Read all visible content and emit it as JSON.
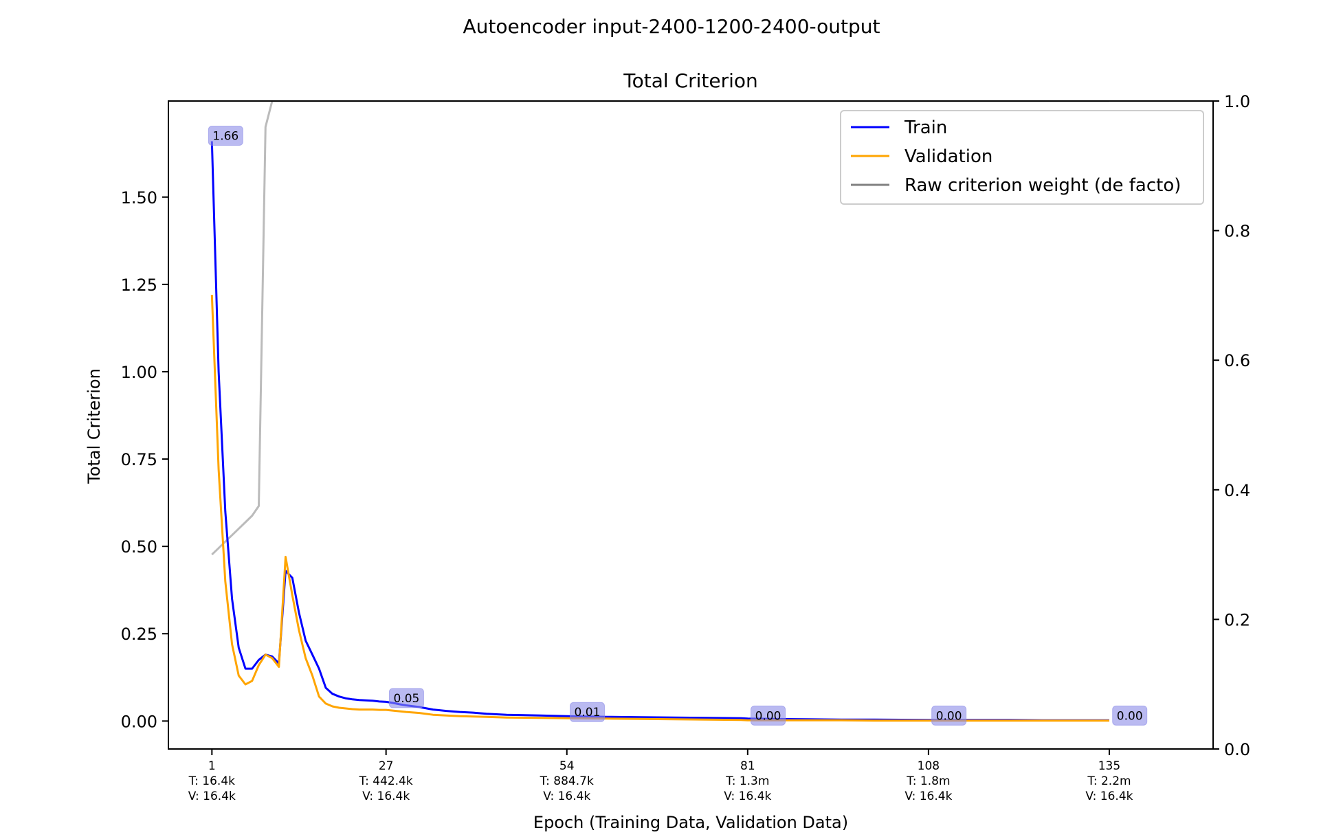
{
  "figure": {
    "suptitle": "Autoencoder input-2400-1200-2400-output"
  },
  "chart_data": {
    "type": "line",
    "title": "Total Criterion",
    "xlabel": "Epoch (Training Data, Validation Data)",
    "ylabel": "Total Criterion",
    "ylabel_right": "",
    "xlim": [
      -5.5,
      150.5
    ],
    "ylim": [
      -0.08,
      1.775
    ],
    "ylim_right": [
      0.0,
      1.0
    ],
    "grid": false,
    "legend_position": "top-right",
    "y_ticks": [
      "0.00",
      "0.25",
      "0.50",
      "0.75",
      "1.00",
      "1.25",
      "1.50"
    ],
    "y_tick_values": [
      0.0,
      0.25,
      0.5,
      0.75,
      1.0,
      1.25,
      1.5
    ],
    "y_right_ticks": [
      "0.0",
      "0.2",
      "0.4",
      "0.6",
      "0.8",
      "1.0"
    ],
    "y_right_tick_values": [
      0.0,
      0.2,
      0.4,
      0.6,
      0.8,
      1.0
    ],
    "x_ticks": [
      {
        "value": 1,
        "lines": [
          "1",
          "T: 16.4k",
          "V: 16.4k"
        ]
      },
      {
        "value": 27,
        "lines": [
          "27",
          "T: 442.4k",
          "V: 16.4k"
        ]
      },
      {
        "value": 54,
        "lines": [
          "54",
          "T: 884.7k",
          "V: 16.4k"
        ]
      },
      {
        "value": 81,
        "lines": [
          "81",
          "T: 1.3m",
          "V: 16.4k"
        ]
      },
      {
        "value": 108,
        "lines": [
          "108",
          "T: 1.8m",
          "V: 16.4k"
        ]
      },
      {
        "value": 135,
        "lines": [
          "135",
          "T: 2.2m",
          "V: 16.4k"
        ]
      }
    ],
    "series": [
      {
        "name": "Train",
        "color": "#0000ff",
        "axis": "left",
        "x": [
          1,
          2,
          3,
          4,
          5,
          6,
          7,
          8,
          9,
          10,
          11,
          12,
          13,
          14,
          15,
          16,
          17,
          18,
          19,
          20,
          21,
          22,
          23,
          24,
          25,
          26,
          27,
          28,
          29,
          30,
          32,
          34,
          36,
          38,
          40,
          42,
          45,
          50,
          54,
          60,
          65,
          70,
          75,
          80,
          81,
          85,
          90,
          95,
          100,
          108,
          115,
          120,
          125,
          130,
          135
        ],
        "y": [
          1.66,
          1.0,
          0.6,
          0.35,
          0.21,
          0.15,
          0.15,
          0.175,
          0.19,
          0.185,
          0.165,
          0.43,
          0.41,
          0.31,
          0.23,
          0.19,
          0.15,
          0.095,
          0.078,
          0.07,
          0.065,
          0.062,
          0.06,
          0.059,
          0.058,
          0.056,
          0.055,
          0.052,
          0.048,
          0.045,
          0.04,
          0.033,
          0.029,
          0.026,
          0.024,
          0.021,
          0.018,
          0.016,
          0.014,
          0.012,
          0.011,
          0.01,
          0.009,
          0.008,
          0.007,
          0.006,
          0.005,
          0.004,
          0.004,
          0.003,
          0.003,
          0.003,
          0.002,
          0.002,
          0.002
        ]
      },
      {
        "name": "Validation",
        "color": "#ffa500",
        "axis": "left",
        "x": [
          1,
          2,
          3,
          4,
          5,
          6,
          7,
          8,
          9,
          10,
          11,
          12,
          13,
          14,
          15,
          16,
          17,
          18,
          19,
          20,
          21,
          22,
          23,
          24,
          25,
          26,
          27,
          28,
          29,
          30,
          32,
          34,
          36,
          38,
          40,
          42,
          45,
          50,
          54,
          60,
          65,
          70,
          75,
          80,
          81,
          85,
          90,
          95,
          100,
          108,
          115,
          120,
          125,
          130,
          135
        ],
        "y": [
          1.22,
          0.72,
          0.4,
          0.22,
          0.13,
          0.105,
          0.115,
          0.16,
          0.19,
          0.18,
          0.155,
          0.47,
          0.36,
          0.26,
          0.18,
          0.13,
          0.07,
          0.05,
          0.042,
          0.038,
          0.036,
          0.034,
          0.033,
          0.033,
          0.033,
          0.032,
          0.032,
          0.03,
          0.028,
          0.026,
          0.023,
          0.018,
          0.016,
          0.014,
          0.013,
          0.012,
          0.01,
          0.009,
          0.008,
          0.007,
          0.006,
          0.005,
          0.004,
          0.003,
          0.002,
          0.002,
          0.002,
          0.002,
          0.001,
          0.001,
          0.001,
          0.001,
          0.001,
          0.001,
          0.001
        ]
      },
      {
        "name": "Raw criterion weight (de facto)",
        "color": "#808080",
        "axis": "right",
        "x": [
          1,
          2,
          3,
          4,
          5,
          6,
          7,
          8,
          9,
          10,
          11,
          11.5,
          12,
          13,
          14,
          15,
          20,
          30,
          60,
          100,
          135
        ],
        "y": [
          0.3,
          0.31,
          0.32,
          0.33,
          0.34,
          0.35,
          0.36,
          0.375,
          0.96,
          1.0,
          1.0,
          1.0,
          1.0,
          1.0,
          1.0,
          1.0,
          1.0,
          1.0,
          1.0,
          1.0,
          1.0
        ]
      }
    ],
    "annotations": [
      {
        "x": 1,
        "y": 1.66,
        "text": "1.66"
      },
      {
        "x": 28,
        "y": 0.05,
        "text": "0.05"
      },
      {
        "x": 55,
        "y": 0.01,
        "text": "0.01"
      },
      {
        "x": 82,
        "y": 0.0,
        "text": "0.00"
      },
      {
        "x": 109,
        "y": 0.0,
        "text": "0.00"
      },
      {
        "x": 136,
        "y": 0.0,
        "text": "0.00"
      }
    ],
    "legend_line_color": "#808080"
  }
}
